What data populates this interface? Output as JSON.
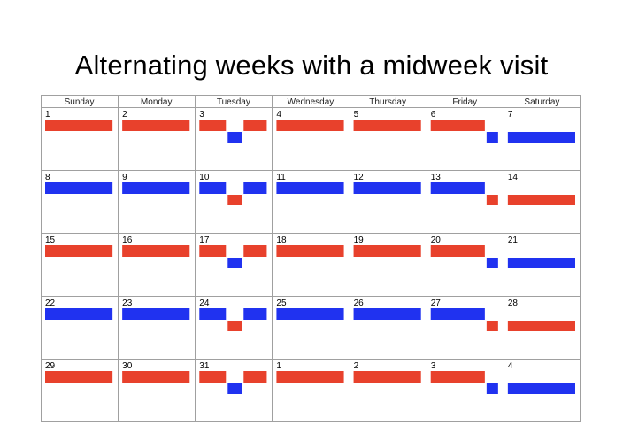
{
  "title": "Alternating weeks with a midweek visit",
  "days_of_week": [
    "Sunday",
    "Monday",
    "Tuesday",
    "Wednesday",
    "Thursday",
    "Friday",
    "Saturday"
  ],
  "colors": {
    "parent_a": "#e8412c",
    "parent_b": "#2032f0",
    "grid": "#a0a0a0"
  },
  "weeks": [
    {
      "dates": [
        "1",
        "2",
        "3",
        "4",
        "5",
        "6",
        "7"
      ],
      "days": [
        {
          "type": "full",
          "color": "parent_a"
        },
        {
          "type": "full",
          "color": "parent_a"
        },
        {
          "type": "visit",
          "main": "parent_a",
          "visit": "parent_b"
        },
        {
          "type": "full",
          "color": "parent_a"
        },
        {
          "type": "full",
          "color": "parent_a"
        },
        {
          "type": "handover",
          "from": "parent_a",
          "to": "parent_b"
        },
        {
          "type": "low",
          "color": "parent_b"
        }
      ]
    },
    {
      "dates": [
        "8",
        "9",
        "10",
        "11",
        "12",
        "13",
        "14"
      ],
      "days": [
        {
          "type": "full",
          "color": "parent_b"
        },
        {
          "type": "full",
          "color": "parent_b"
        },
        {
          "type": "visit",
          "main": "parent_b",
          "visit": "parent_a"
        },
        {
          "type": "full",
          "color": "parent_b"
        },
        {
          "type": "full",
          "color": "parent_b"
        },
        {
          "type": "handover",
          "from": "parent_b",
          "to": "parent_a"
        },
        {
          "type": "low",
          "color": "parent_a"
        }
      ]
    },
    {
      "dates": [
        "15",
        "16",
        "17",
        "18",
        "19",
        "20",
        "21"
      ],
      "days": [
        {
          "type": "full",
          "color": "parent_a"
        },
        {
          "type": "full",
          "color": "parent_a"
        },
        {
          "type": "visit",
          "main": "parent_a",
          "visit": "parent_b"
        },
        {
          "type": "full",
          "color": "parent_a"
        },
        {
          "type": "full",
          "color": "parent_a"
        },
        {
          "type": "handover",
          "from": "parent_a",
          "to": "parent_b"
        },
        {
          "type": "low",
          "color": "parent_b"
        }
      ]
    },
    {
      "dates": [
        "22",
        "23",
        "24",
        "25",
        "26",
        "27",
        "28"
      ],
      "days": [
        {
          "type": "full",
          "color": "parent_b"
        },
        {
          "type": "full",
          "color": "parent_b"
        },
        {
          "type": "visit",
          "main": "parent_b",
          "visit": "parent_a"
        },
        {
          "type": "full",
          "color": "parent_b"
        },
        {
          "type": "full",
          "color": "parent_b"
        },
        {
          "type": "handover",
          "from": "parent_b",
          "to": "parent_a"
        },
        {
          "type": "low",
          "color": "parent_a"
        }
      ]
    },
    {
      "dates": [
        "29",
        "30",
        "31",
        "1",
        "2",
        "3",
        "4"
      ],
      "days": [
        {
          "type": "full",
          "color": "parent_a"
        },
        {
          "type": "full",
          "color": "parent_a"
        },
        {
          "type": "visit",
          "main": "parent_a",
          "visit": "parent_b"
        },
        {
          "type": "full",
          "color": "parent_a"
        },
        {
          "type": "full",
          "color": "parent_a"
        },
        {
          "type": "handover",
          "from": "parent_a",
          "to": "parent_b"
        },
        {
          "type": "low",
          "color": "parent_b"
        }
      ]
    }
  ]
}
